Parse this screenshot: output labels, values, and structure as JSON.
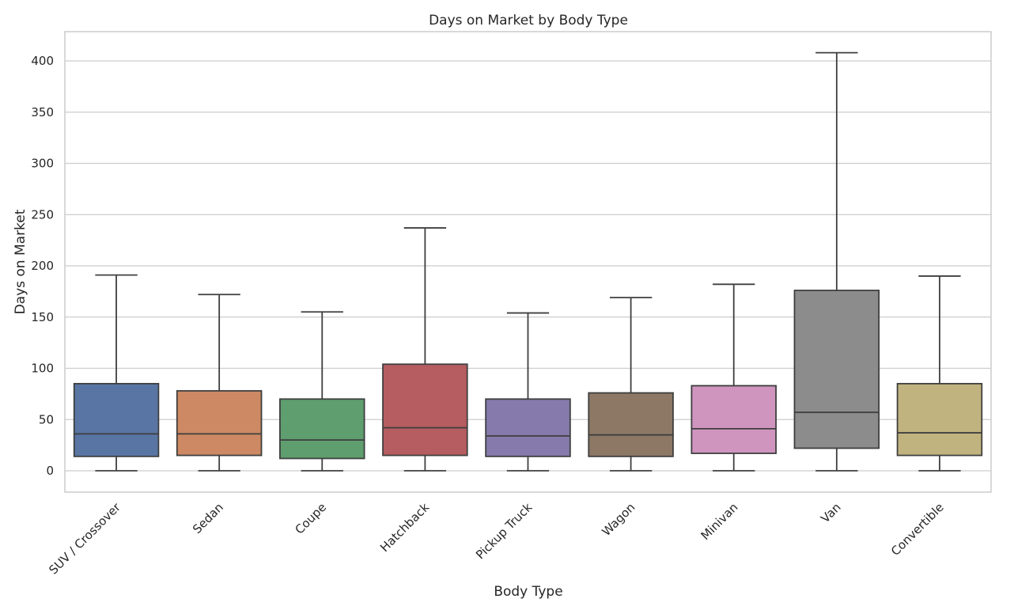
{
  "chart_data": {
    "type": "boxplot",
    "title": "Days on Market by Body Type",
    "xlabel": "Body Type",
    "ylabel": "Days on Market",
    "ylim": [
      -20,
      420
    ],
    "yticks": [
      0,
      50,
      100,
      150,
      200,
      250,
      300,
      350,
      400
    ],
    "grid": "horizontal",
    "categories": [
      "SUV / Crossover",
      "Sedan",
      "Coupe",
      "Hatchback",
      "Pickup Truck",
      "Wagon",
      "Minivan",
      "Van",
      "Convertible"
    ],
    "boxes": [
      {
        "category": "SUV / Crossover",
        "whisker_low": 0,
        "q1": 14,
        "median": 36,
        "q3": 85,
        "whisker_high": 191,
        "color": "#5975a4"
      },
      {
        "category": "Sedan",
        "whisker_low": 0,
        "q1": 15,
        "median": 36,
        "q3": 78,
        "whisker_high": 172,
        "color": "#cc8963"
      },
      {
        "category": "Coupe",
        "whisker_low": 0,
        "q1": 12,
        "median": 30,
        "q3": 70,
        "whisker_high": 155,
        "color": "#5f9e6e"
      },
      {
        "category": "Hatchback",
        "whisker_low": 0,
        "q1": 15,
        "median": 42,
        "q3": 104,
        "whisker_high": 237,
        "color": "#b55d60"
      },
      {
        "category": "Pickup Truck",
        "whisker_low": 0,
        "q1": 14,
        "median": 34,
        "q3": 70,
        "whisker_high": 154,
        "color": "#857aab"
      },
      {
        "category": "Wagon",
        "whisker_low": 0,
        "q1": 14,
        "median": 35,
        "q3": 76,
        "whisker_high": 169,
        "color": "#8d7866"
      },
      {
        "category": "Minivan",
        "whisker_low": 0,
        "q1": 17,
        "median": 41,
        "q3": 83,
        "whisker_high": 182,
        "color": "#d095bf"
      },
      {
        "category": "Van",
        "whisker_low": 0,
        "q1": 22,
        "median": 57,
        "q3": 176,
        "whisker_high": 408,
        "color": "#8c8c8c"
      },
      {
        "category": "Convertible",
        "whisker_low": 0,
        "q1": 15,
        "median": 37,
        "q3": 85,
        "whisker_high": 190,
        "color": "#c1b37f"
      }
    ]
  }
}
